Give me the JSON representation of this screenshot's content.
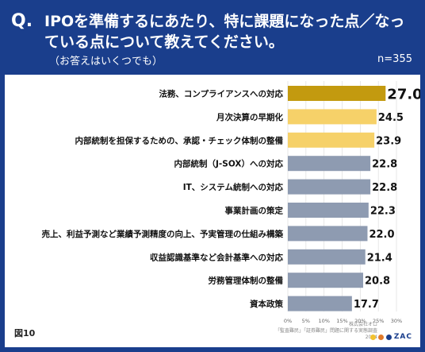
{
  "header": {
    "q_mark": "Q.",
    "title": "IPOを準備するにあたり、特に課題になった点／なっている点について教えてください。",
    "subtitle": "（お答えはいくつでも）",
    "n": "n=355"
  },
  "footer": {
    "figure_label": "図10",
    "source_line1": "株式会社オロ",
    "source_line2": "「監査難民」「証券難民」問題に関する実態調査2024",
    "logo_text": "ZAC"
  },
  "colors": {
    "header_bg": "#1a3e8c",
    "top_bar": "#c39a0f",
    "highlight_bar": "#f6d169",
    "other_bar": "#8e9bb1",
    "logo_dot_1": "#f2c230",
    "logo_dot_2": "#e07a2a",
    "logo_dot_3": "#1a3e8c"
  },
  "chart_data": {
    "type": "bar",
    "orientation": "horizontal",
    "categories": [
      "法務、コンプライアンスへの対応",
      "月次決算の早期化",
      "内部統制を担保するための、承認・チェック体制の整備",
      "内部統制（J-SOX）への対応",
      "IT、システム統制への対応",
      "事業計画の策定",
      "売上、利益予測など業績予測精度の向上、予実管理の仕組み構築",
      "収益認識基準など会計基準への対応",
      "労務管理体制の整備",
      "資本政策"
    ],
    "values": [
      27.0,
      24.5,
      23.9,
      22.8,
      22.8,
      22.3,
      22.0,
      21.4,
      20.8,
      17.7
    ],
    "value_labels": [
      "27.0",
      "24.5",
      "23.9",
      "22.8",
      "22.8",
      "22.3",
      "22.0",
      "21.4",
      "20.8",
      "17.7"
    ],
    "xlim": [
      0,
      30
    ],
    "xticks": [
      "0%",
      "5%",
      "10%",
      "15%",
      "20%",
      "25%",
      "30%"
    ],
    "grid": true
  }
}
